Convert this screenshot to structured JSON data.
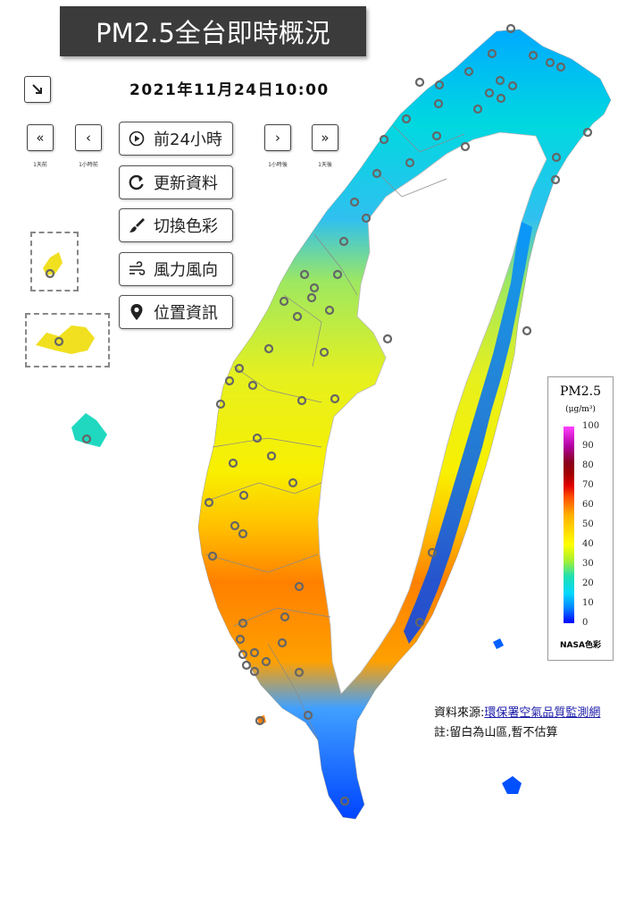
{
  "title": "PM2.5全台即時概況",
  "timestamp": "2021年11月24日10:00",
  "toggle_icon": "arrow-down-right-icon",
  "nav": {
    "day_back": {
      "icon": "double-chevron-left-icon",
      "label": "1天前"
    },
    "hour_back": {
      "icon": "chevron-left-icon",
      "label": "1小時前"
    },
    "hour_forward": {
      "icon": "chevron-right-icon",
      "label": "1小時後"
    },
    "day_forward": {
      "icon": "double-chevron-right-icon",
      "label": "1天後"
    }
  },
  "actions": [
    {
      "label": "前24小時",
      "icon": "play-circle-icon"
    },
    {
      "label": "更新資料",
      "icon": "refresh-icon"
    },
    {
      "label": "切換色彩",
      "icon": "paintbrush-icon"
    },
    {
      "label": "風力風向",
      "icon": "wind-icon"
    },
    {
      "label": "位置資訊",
      "icon": "map-pin-icon"
    }
  ],
  "legend": {
    "title": "PM2.5",
    "unit": "(μg/m³)",
    "ticks": [
      "100",
      "90",
      "80",
      "70",
      "60",
      "50",
      "40",
      "30",
      "20",
      "10",
      "0"
    ],
    "name": "NASA色彩",
    "colors": {
      "low": "#0000ff",
      "mid": "#ffff00",
      "high": "#ff5000",
      "max": "#ff40ff"
    }
  },
  "source": {
    "prefix": "資料來源:",
    "link": "環保署空氣品質監測網"
  },
  "note": "註:留白為山區,暫不估算"
}
